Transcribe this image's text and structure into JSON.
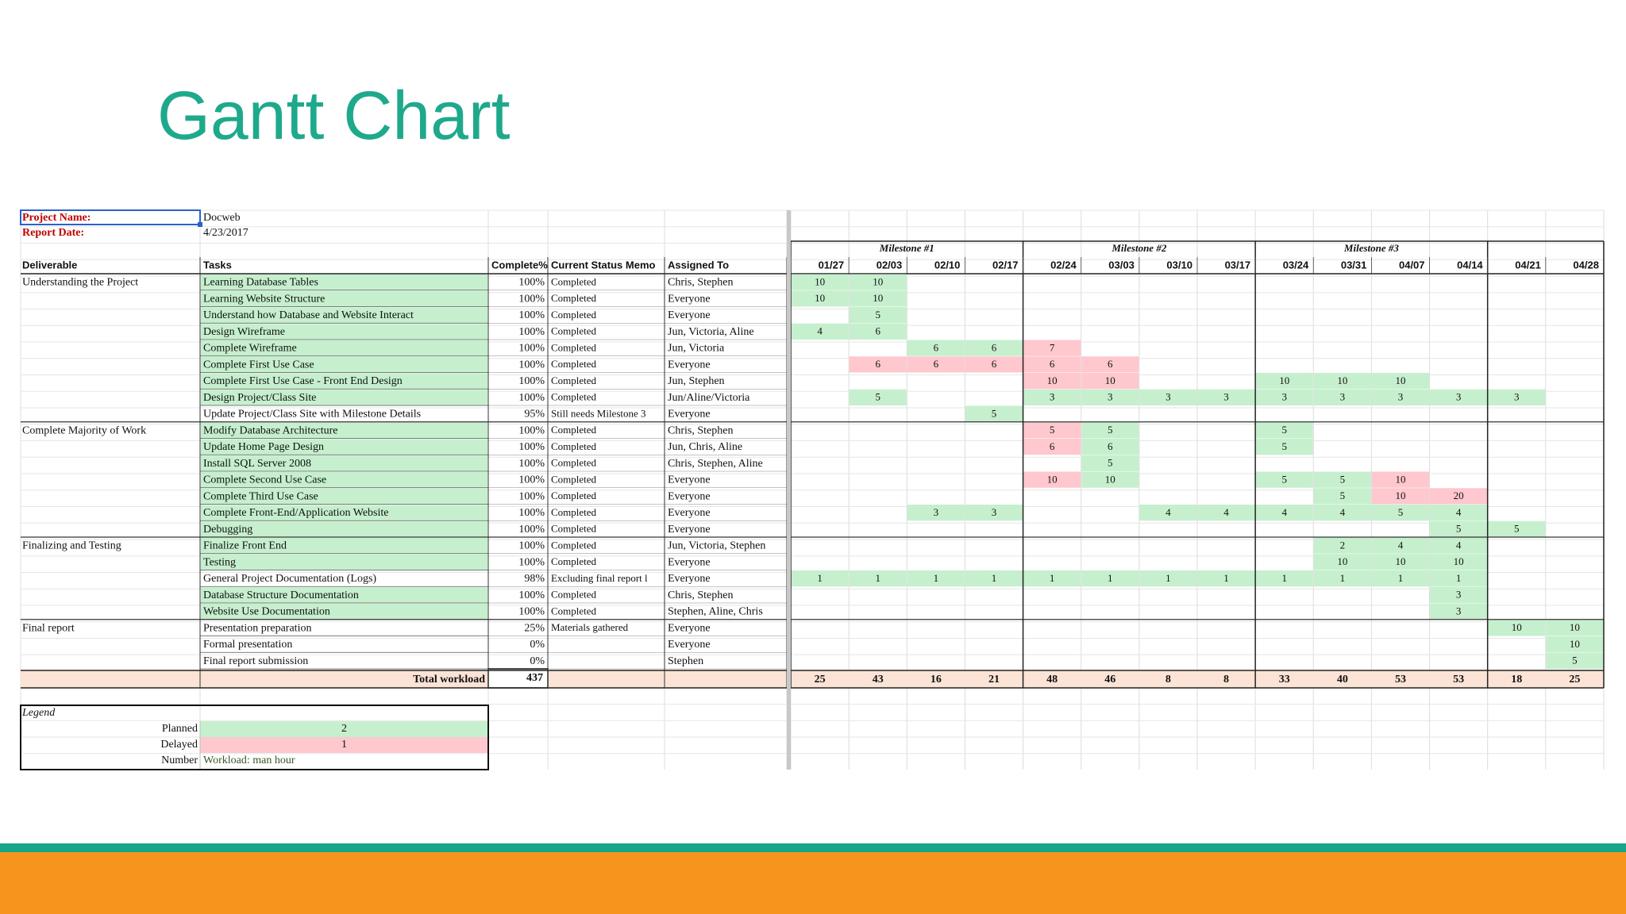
{
  "title": "Gantt Chart",
  "project": {
    "name_label": "Project Name:",
    "name": "Docweb",
    "date_label": "Report Date:",
    "date": "4/23/2017"
  },
  "milestones": [
    "Milestone #1",
    "Milestone #2",
    "Milestone #3"
  ],
  "headers": [
    "Deliverable",
    "Tasks",
    "Complete%",
    "Current Status Memo",
    "Assigned To"
  ],
  "weeks": [
    "01/27",
    "02/03",
    "02/10",
    "02/17",
    "02/24",
    "03/03",
    "03/10",
    "03/17",
    "03/24",
    "03/31",
    "04/07",
    "04/14",
    "04/21",
    "04/28"
  ],
  "rows": [
    {
      "deliverable": "Understanding the Project",
      "task": "Learning Database Tables",
      "task_color": "#c6efce",
      "complete": "100%",
      "memo": "Completed",
      "assigned": "Chris, Stephen",
      "cells": [
        {
          "value": 10,
          "color": "#c6efce"
        },
        {
          "value": 10,
          "color": "#c6efce"
        },
        null,
        null,
        null,
        null,
        null,
        null,
        null,
        null,
        null,
        null,
        null,
        null
      ]
    },
    {
      "task": "Learning Website Structure",
      "task_color": "#c6efce",
      "complete": "100%",
      "memo": "Completed",
      "assigned": "Everyone",
      "cells": [
        {
          "value": 10,
          "color": "#c6efce"
        },
        {
          "value": 10,
          "color": "#c6efce"
        },
        null,
        null,
        null,
        null,
        null,
        null,
        null,
        null,
        null,
        null,
        null,
        null
      ]
    },
    {
      "task": "Understand how Database and Website Interact",
      "task_color": "#c6efce",
      "complete": "100%",
      "memo": "Completed",
      "assigned": "Everyone",
      "cells": [
        null,
        {
          "value": 5,
          "color": "#c6efce"
        },
        null,
        null,
        null,
        null,
        null,
        null,
        null,
        null,
        null,
        null,
        null,
        null
      ]
    },
    {
      "task": "Design Wireframe",
      "task_color": "#c6efce",
      "complete": "100%",
      "memo": "Completed",
      "assigned": "Jun, Victoria, Aline",
      "cells": [
        {
          "value": 4,
          "color": "#c6efce"
        },
        {
          "value": 6,
          "color": "#c6efce"
        },
        null,
        null,
        null,
        null,
        null,
        null,
        null,
        null,
        null,
        null,
        null,
        null
      ]
    },
    {
      "task": "Complete Wireframe",
      "task_color": "#c6efce",
      "complete": "100%",
      "memo": "Completed",
      "assigned": "Jun, Victoria",
      "cells": [
        null,
        null,
        {
          "value": 6,
          "color": "#c6efce"
        },
        {
          "value": 6,
          "color": "#c6efce"
        },
        {
          "value": 7,
          "color": "#ffc7ce"
        },
        null,
        null,
        null,
        null,
        null,
        null,
        null,
        null,
        null
      ]
    },
    {
      "task": "Complete First Use Case",
      "task_color": "#c6efce",
      "complete": "100%",
      "memo": "Completed",
      "assigned": "Everyone",
      "cells": [
        null,
        {
          "value": 6,
          "color": "#ffc7ce"
        },
        {
          "value": 6,
          "color": "#ffc7ce"
        },
        {
          "value": 6,
          "color": "#ffc7ce"
        },
        {
          "value": 6,
          "color": "#ffc7ce"
        },
        {
          "value": 6,
          "color": "#ffc7ce"
        },
        null,
        null,
        null,
        null,
        null,
        null,
        null,
        null
      ]
    },
    {
      "task": "Complete First Use Case - Front End Design",
      "task_color": "#c6efce",
      "complete": "100%",
      "memo": "Completed",
      "assigned": "Jun, Stephen",
      "cells": [
        null,
        null,
        null,
        null,
        {
          "value": 10,
          "color": "#ffc7ce"
        },
        {
          "value": 10,
          "color": "#ffc7ce"
        },
        null,
        null,
        {
          "value": 10,
          "color": "#c6efce"
        },
        {
          "value": 10,
          "color": "#c6efce"
        },
        {
          "value": 10,
          "color": "#c6efce"
        },
        null,
        null,
        null
      ]
    },
    {
      "task": "Design Project/Class Site",
      "task_color": "#c6efce",
      "complete": "100%",
      "memo": "Completed",
      "assigned": "Jun/Aline/Victoria",
      "cells": [
        null,
        {
          "value": 5,
          "color": "#c6efce"
        },
        null,
        null,
        {
          "value": 3,
          "color": "#c6efce"
        },
        {
          "value": 3,
          "color": "#c6efce"
        },
        {
          "value": 3,
          "color": "#c6efce"
        },
        {
          "value": 3,
          "color": "#c6efce"
        },
        {
          "value": 3,
          "color": "#c6efce"
        },
        {
          "value": 3,
          "color": "#c6efce"
        },
        {
          "value": 3,
          "color": "#c6efce"
        },
        {
          "value": 3,
          "color": "#c6efce"
        },
        {
          "value": 3,
          "color": "#c6efce"
        },
        null
      ]
    },
    {
      "task": "Update Project/Class Site with Milestone Details",
      "task_color": null,
      "complete": "95%",
      "memo": "Still needs Milestone 3",
      "assigned": "Everyone",
      "cells": [
        null,
        null,
        null,
        {
          "value": 5,
          "color": "#c6efce"
        },
        null,
        null,
        null,
        null,
        null,
        null,
        null,
        null,
        null,
        null
      ]
    },
    {
      "deliverable": "Complete Majority of Work",
      "task": "Modify Database Architecture",
      "task_color": "#c6efce",
      "complete": "100%",
      "memo": "Completed",
      "assigned": "Chris, Stephen",
      "cells": [
        null,
        null,
        null,
        null,
        {
          "value": 5,
          "color": "#ffc7ce"
        },
        {
          "value": 5,
          "color": "#c6efce"
        },
        null,
        null,
        {
          "value": 5,
          "color": "#c6efce"
        },
        null,
        null,
        null,
        null,
        null
      ]
    },
    {
      "task": "Update Home Page Design",
      "task_color": "#c6efce",
      "complete": "100%",
      "memo": "Completed",
      "assigned": "Jun, Chris, Aline",
      "cells": [
        null,
        null,
        null,
        null,
        {
          "value": 6,
          "color": "#ffc7ce"
        },
        {
          "value": 6,
          "color": "#c6efce"
        },
        null,
        null,
        {
          "value": 5,
          "color": "#c6efce"
        },
        null,
        null,
        null,
        null,
        null
      ]
    },
    {
      "task": "Install SQL Server 2008",
      "task_color": "#c6efce",
      "complete": "100%",
      "memo": "Completed",
      "assigned": "Chris, Stephen, Aline",
      "cells": [
        null,
        null,
        null,
        null,
        null,
        {
          "value": 5,
          "color": "#c6efce"
        },
        null,
        null,
        null,
        null,
        null,
        null,
        null,
        null
      ]
    },
    {
      "task": "Complete Second Use Case",
      "task_color": "#c6efce",
      "complete": "100%",
      "memo": "Completed",
      "assigned": "Everyone",
      "cells": [
        null,
        null,
        null,
        null,
        {
          "value": 10,
          "color": "#ffc7ce"
        },
        {
          "value": 10,
          "color": "#c6efce"
        },
        null,
        null,
        {
          "value": 5,
          "color": "#c6efce"
        },
        {
          "value": 5,
          "color": "#c6efce"
        },
        {
          "value": 10,
          "color": "#ffc7ce"
        },
        null,
        null,
        null
      ]
    },
    {
      "task": "Complete Third Use Case",
      "task_color": "#c6efce",
      "complete": "100%",
      "memo": "Completed",
      "assigned": "Everyone",
      "cells": [
        null,
        null,
        null,
        null,
        null,
        null,
        null,
        null,
        null,
        {
          "value": 5,
          "color": "#c6efce"
        },
        {
          "value": 10,
          "color": "#ffc7ce"
        },
        {
          "value": 20,
          "color": "#ffc7ce"
        },
        null,
        null
      ]
    },
    {
      "task": "Complete Front-End/Application Website",
      "task_color": "#c6efce",
      "complete": "100%",
      "memo": "Completed",
      "assigned": "Everyone",
      "cells": [
        null,
        null,
        {
          "value": 3,
          "color": "#c6efce"
        },
        {
          "value": 3,
          "color": "#c6efce"
        },
        null,
        null,
        {
          "value": 4,
          "color": "#c6efce"
        },
        {
          "value": 4,
          "color": "#c6efce"
        },
        {
          "value": 4,
          "color": "#c6efce"
        },
        {
          "value": 4,
          "color": "#c6efce"
        },
        {
          "value": 5,
          "color": "#c6efce"
        },
        {
          "value": 4,
          "color": "#c6efce"
        },
        null,
        null
      ]
    },
    {
      "task": "Debugging",
      "task_color": "#c6efce",
      "complete": "100%",
      "memo": "Completed",
      "assigned": "Everyone",
      "cells": [
        null,
        null,
        null,
        null,
        null,
        null,
        null,
        null,
        null,
        null,
        null,
        {
          "value": 5,
          "color": "#c6efce"
        },
        {
          "value": 5,
          "color": "#c6efce"
        },
        null
      ]
    },
    {
      "deliverable": "Finalizing and Testing",
      "task": "Finalize Front End",
      "task_color": "#c6efce",
      "complete": "100%",
      "memo": "Completed",
      "assigned": "Jun, Victoria, Stephen",
      "cells": [
        null,
        null,
        null,
        null,
        null,
        null,
        null,
        null,
        null,
        {
          "value": 2,
          "color": "#c6efce"
        },
        {
          "value": 4,
          "color": "#c6efce"
        },
        {
          "value": 4,
          "color": "#c6efce"
        },
        null,
        null
      ]
    },
    {
      "task": "Testing",
      "task_color": "#c6efce",
      "complete": "100%",
      "memo": "Completed",
      "assigned": "Everyone",
      "cells": [
        null,
        null,
        null,
        null,
        null,
        null,
        null,
        null,
        null,
        {
          "value": 10,
          "color": "#c6efce"
        },
        {
          "value": 10,
          "color": "#c6efce"
        },
        {
          "value": 10,
          "color": "#c6efce"
        },
        null,
        null
      ]
    },
    {
      "task": "General Project Documentation (Logs)",
      "task_color": null,
      "complete": "98%",
      "memo": "Excluding final report l",
      "assigned": "Everyone",
      "cells": [
        {
          "value": 1,
          "color": "#c6efce"
        },
        {
          "value": 1,
          "color": "#c6efce"
        },
        {
          "value": 1,
          "color": "#c6efce"
        },
        {
          "value": 1,
          "color": "#c6efce"
        },
        {
          "value": 1,
          "color": "#c6efce"
        },
        {
          "value": 1,
          "color": "#c6efce"
        },
        {
          "value": 1,
          "color": "#c6efce"
        },
        {
          "value": 1,
          "color": "#c6efce"
        },
        {
          "value": 1,
          "color": "#c6efce"
        },
        {
          "value": 1,
          "color": "#c6efce"
        },
        {
          "value": 1,
          "color": "#c6efce"
        },
        {
          "value": 1,
          "color": "#c6efce"
        },
        null,
        null
      ]
    },
    {
      "task": "Database Structure Documentation",
      "task_color": "#c6efce",
      "complete": "100%",
      "memo": "Completed",
      "assigned": "Chris, Stephen",
      "cells": [
        null,
        null,
        null,
        null,
        null,
        null,
        null,
        null,
        null,
        null,
        null,
        {
          "value": 3,
          "color": "#c6efce"
        },
        null,
        null
      ]
    },
    {
      "task": "Website Use Documentation",
      "task_color": "#c6efce",
      "complete": "100%",
      "memo": "Completed",
      "assigned": "Stephen, Aline, Chris",
      "cells": [
        null,
        null,
        null,
        null,
        null,
        null,
        null,
        null,
        null,
        null,
        null,
        {
          "value": 3,
          "color": "#c6efce"
        },
        null,
        null
      ]
    },
    {
      "deliverable": "Final report",
      "task": "Presentation preparation",
      "task_color": null,
      "complete": "25%",
      "memo": "Materials gathered",
      "assigned": "Everyone",
      "cells": [
        null,
        null,
        null,
        null,
        null,
        null,
        null,
        null,
        null,
        null,
        null,
        null,
        {
          "value": 10,
          "color": "#c6efce"
        },
        {
          "value": 10,
          "color": "#c6efce"
        }
      ]
    },
    {
      "task": "Formal presentation",
      "task_color": null,
      "complete": "0%",
      "assigned": "Everyone",
      "cells": [
        null,
        null,
        null,
        null,
        null,
        null,
        null,
        null,
        null,
        null,
        null,
        null,
        null,
        {
          "value": 10,
          "color": "#c6efce"
        }
      ]
    },
    {
      "task": "Final report submission",
      "task_color": null,
      "complete": "0%",
      "assigned": "Stephen",
      "cells": [
        null,
        null,
        null,
        null,
        null,
        null,
        null,
        null,
        null,
        null,
        null,
        null,
        null,
        {
          "value": 5,
          "color": "#c6efce"
        }
      ]
    }
  ],
  "totals": {
    "label": "Total workload",
    "total": 437,
    "weeks": [
      25,
      43,
      16,
      21,
      48,
      46,
      8,
      8,
      33,
      40,
      53,
      53,
      18,
      25
    ]
  },
  "legend": {
    "title": "Legend",
    "items": [
      {
        "label": "Planned",
        "value": 2,
        "color": "#c6efce"
      },
      {
        "label": "Delayed",
        "value": 1,
        "color": "#ffc7ce"
      }
    ],
    "note_label": "Number",
    "note": "Workload: man hour"
  }
}
